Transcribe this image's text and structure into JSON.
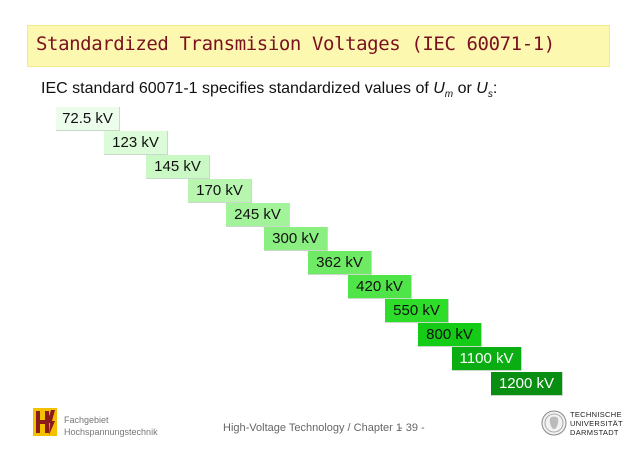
{
  "title": "Standardized Transmision Voltages (IEC 60071-1)",
  "intro": {
    "text": "IEC standard 60071-1 specifies standardized values of ",
    "var1": "U",
    "sub1": "m",
    "connector": " or ",
    "var2": "U",
    "sub2": "s",
    "end": ":"
  },
  "voltages": [
    {
      "label": "72.5 kV",
      "color": "#ecfdec",
      "text_color": "#111111"
    },
    {
      "label": "123 kV",
      "color": "#dcfbd8",
      "text_color": "#111111"
    },
    {
      "label": "145 kV",
      "color": "#cbf9c5",
      "text_color": "#111111"
    },
    {
      "label": "170 kV",
      "color": "#b8f6b0",
      "text_color": "#111111"
    },
    {
      "label": "245 kV",
      "color": "#a2f399",
      "text_color": "#111111"
    },
    {
      "label": "300 kV",
      "color": "#8aef80",
      "text_color": "#111111"
    },
    {
      "label": "362 kV",
      "color": "#6fea65",
      "text_color": "#111111"
    },
    {
      "label": "420 kV",
      "color": "#4fe447",
      "text_color": "#111111"
    },
    {
      "label": "550 kV",
      "color": "#2edc2a",
      "text_color": "#111111"
    },
    {
      "label": "800 kV",
      "color": "#14cb16",
      "text_color": "#111111"
    },
    {
      "label": "1100 kV",
      "color": "#0aae12",
      "text_color": "#ffffff"
    },
    {
      "label": "1200 kV",
      "color": "#088e10",
      "text_color": "#ffffff"
    }
  ],
  "footer": {
    "dept_line1": "Fachgebiet",
    "dept_line2": "Hochspannungstechnik",
    "center": "High-Voltage Technology / Chapter 1",
    "page": "- 39 -",
    "uni_line1": "TECHNISCHE",
    "uni_line2": "UNIVERSITÄT",
    "uni_line3": "DARMSTADT"
  }
}
